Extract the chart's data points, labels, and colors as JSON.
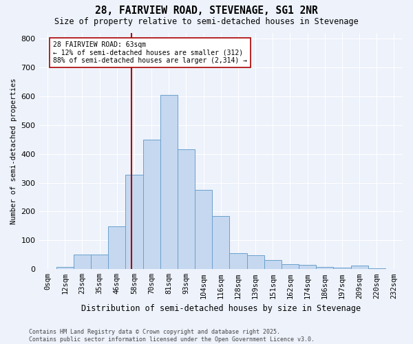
{
  "title1": "28, FAIRVIEW ROAD, STEVENAGE, SG1 2NR",
  "title2": "Size of property relative to semi-detached houses in Stevenage",
  "xlabel": "Distribution of semi-detached houses by size in Stevenage",
  "ylabel": "Number of semi-detached properties",
  "footnote": "Contains HM Land Registry data © Crown copyright and database right 2025.\nContains public sector information licensed under the Open Government Licence v3.0.",
  "bin_labels": [
    "0sqm",
    "12sqm",
    "23sqm",
    "35sqm",
    "46sqm",
    "58sqm",
    "70sqm",
    "81sqm",
    "93sqm",
    "104sqm",
    "116sqm",
    "128sqm",
    "139sqm",
    "151sqm",
    "162sqm",
    "174sqm",
    "186sqm",
    "197sqm",
    "209sqm",
    "220sqm",
    "232sqm"
  ],
  "bar_heights": [
    0,
    8,
    50,
    50,
    148,
    328,
    450,
    605,
    415,
    275,
    185,
    55,
    48,
    32,
    18,
    14,
    8,
    6,
    12,
    2,
    0
  ],
  "bar_color": "#c5d8f0",
  "bar_edge_color": "#6aa0cc",
  "vline_color": "#aa0000",
  "annotation_text": "28 FAIRVIEW ROAD: 63sqm\n← 12% of semi-detached houses are smaller (312)\n88% of semi-detached houses are larger (2,314) →",
  "annotation_box_color": "white",
  "annotation_box_edge": "#aa0000",
  "ylim": [
    0,
    820
  ],
  "yticks": [
    0,
    100,
    200,
    300,
    400,
    500,
    600,
    700,
    800
  ],
  "vline_pos": 4.85,
  "background_color": "#edf2fb"
}
